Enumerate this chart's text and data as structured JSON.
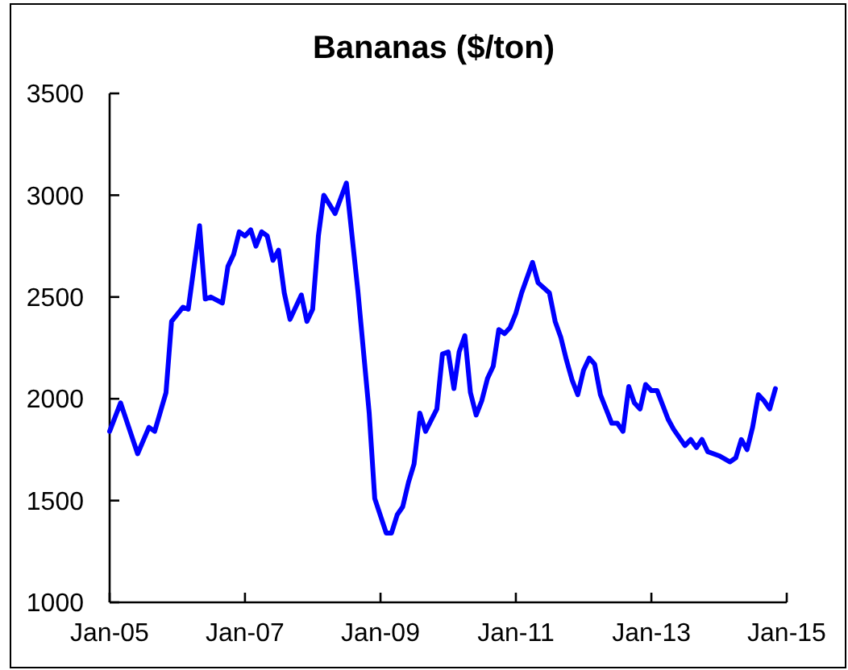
{
  "chart_data": {
    "type": "line",
    "title": "Bananas ($/ton)",
    "x": [
      "2005-01",
      "2005-03",
      "2005-06",
      "2005-08",
      "2005-09",
      "2005-11",
      "2005-12",
      "2006-02",
      "2006-03",
      "2006-05",
      "2006-06",
      "2006-07",
      "2006-09",
      "2006-10",
      "2006-11",
      "2006-12",
      "2007-01",
      "2007-02",
      "2007-03",
      "2007-04",
      "2007-05",
      "2007-06",
      "2007-07",
      "2007-08",
      "2007-09",
      "2007-11",
      "2007-12",
      "2008-01",
      "2008-02",
      "2008-03",
      "2008-05",
      "2008-07",
      "2008-09",
      "2008-11",
      "2008-12",
      "2009-02",
      "2009-03",
      "2009-04",
      "2009-05",
      "2009-06",
      "2009-07",
      "2009-08",
      "2009-09",
      "2009-11",
      "2009-12",
      "2010-01",
      "2010-02",
      "2010-03",
      "2010-04",
      "2010-05",
      "2010-06",
      "2010-07",
      "2010-08",
      "2010-09",
      "2010-10",
      "2010-11",
      "2010-12",
      "2011-01",
      "2011-02",
      "2011-04",
      "2011-05",
      "2011-07",
      "2011-08",
      "2011-09",
      "2011-10",
      "2011-11",
      "2011-12",
      "2012-01",
      "2012-02",
      "2012-03",
      "2012-04",
      "2012-06",
      "2012-07",
      "2012-08",
      "2012-09",
      "2012-10",
      "2012-11",
      "2012-12",
      "2013-01",
      "2013-02",
      "2013-04",
      "2013-05",
      "2013-07",
      "2013-08",
      "2013-09",
      "2013-10",
      "2013-11",
      "2014-01",
      "2014-03",
      "2014-04",
      "2014-05",
      "2014-06",
      "2014-07",
      "2014-08",
      "2014-09",
      "2014-10",
      "2014-11"
    ],
    "series": [
      {
        "color": "#0000ff",
        "values": [
          1840,
          1980,
          1730,
          1860,
          1840,
          2030,
          2380,
          2450,
          2440,
          2850,
          2490,
          2500,
          2470,
          2650,
          2710,
          2820,
          2800,
          2830,
          2750,
          2820,
          2800,
          2680,
          2730,
          2520,
          2390,
          2510,
          2380,
          2440,
          2800,
          3000,
          2910,
          3060,
          2530,
          1930,
          1510,
          1340,
          1340,
          1430,
          1470,
          1590,
          1680,
          1930,
          1840,
          1950,
          2220,
          2230,
          2050,
          2230,
          2310,
          2030,
          1920,
          1990,
          2100,
          2160,
          2340,
          2320,
          2350,
          2420,
          2520,
          2670,
          2570,
          2520,
          2380,
          2300,
          2190,
          2090,
          2020,
          2140,
          2200,
          2170,
          2020,
          1880,
          1880,
          1840,
          2060,
          1980,
          1950,
          2070,
          2040,
          2040,
          1900,
          1850,
          1770,
          1800,
          1760,
          1800,
          1740,
          1720,
          1690,
          1710,
          1800,
          1750,
          1860,
          2020,
          1990,
          1950,
          2050
        ]
      }
    ],
    "xlim": [
      "2005-01",
      "2015-01"
    ],
    "xticks": [
      {
        "value": "2005-01",
        "label": "Jan-05"
      },
      {
        "value": "2007-01",
        "label": "Jan-07"
      },
      {
        "value": "2009-01",
        "label": "Jan-09"
      },
      {
        "value": "2011-01",
        "label": "Jan-11"
      },
      {
        "value": "2013-01",
        "label": "Jan-13"
      },
      {
        "value": "2015-01",
        "label": "Jan-15"
      }
    ],
    "ylim": [
      1000,
      3500
    ],
    "yticks": [
      1000,
      1500,
      2000,
      2500,
      3000,
      3500
    ]
  }
}
